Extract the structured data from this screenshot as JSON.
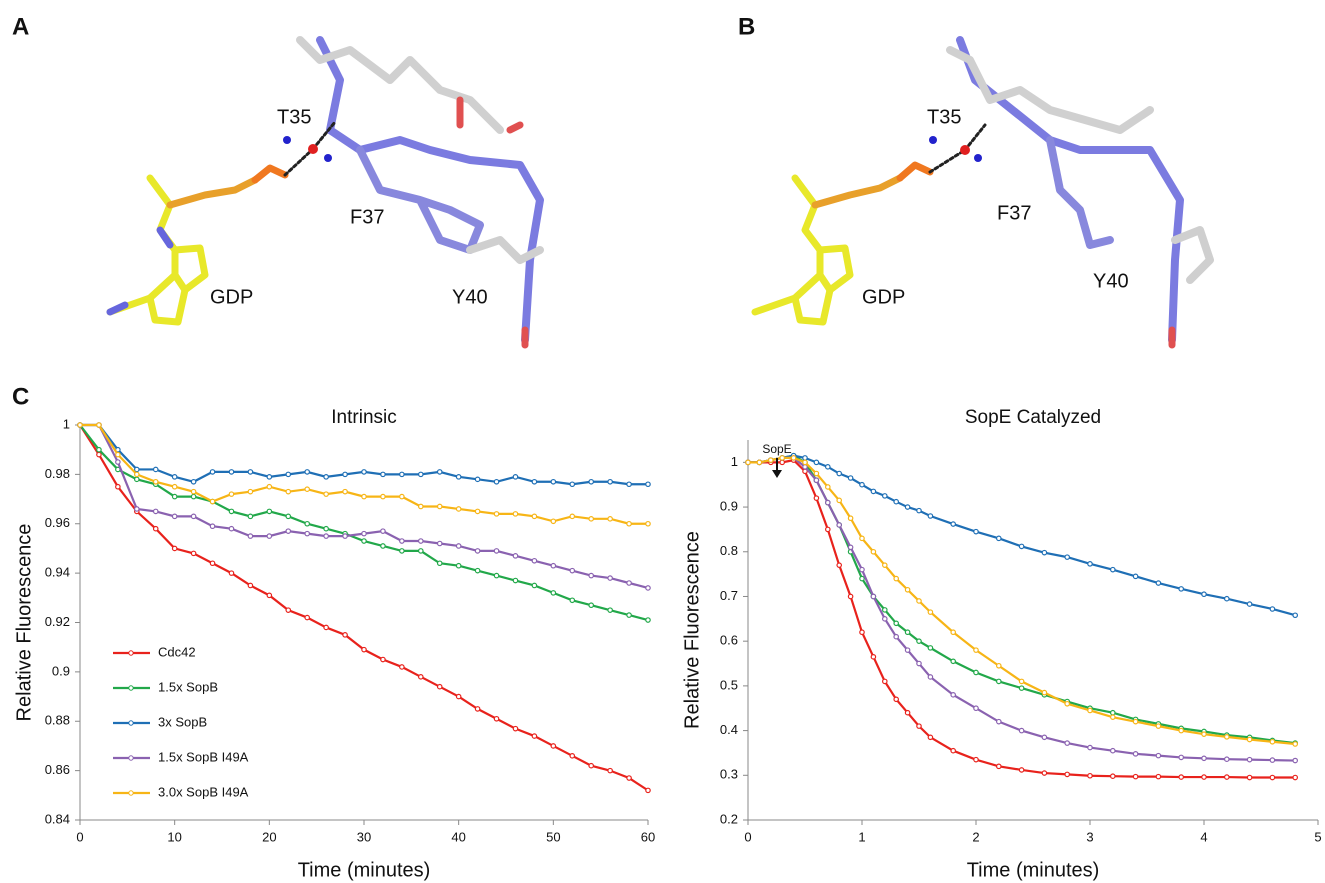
{
  "figure": {
    "panels": [
      "A",
      "B",
      "C"
    ],
    "structure_a": {
      "labels": [
        "T35",
        "F37",
        "Y40",
        "GDP"
      ]
    },
    "structure_b": {
      "labels": [
        "T35",
        "F37",
        "Y40",
        "GDP"
      ]
    }
  },
  "chart_data": [
    {
      "type": "line",
      "title": "Intrinsic",
      "x_label": "Time (minutes)",
      "y_label": "Relative Fluorescence",
      "x": [
        0,
        2,
        4,
        6,
        8,
        10,
        12,
        14,
        16,
        18,
        20,
        22,
        24,
        26,
        28,
        30,
        32,
        34,
        36,
        38,
        40,
        42,
        44,
        46,
        48,
        50,
        52,
        54,
        56,
        58,
        60
      ],
      "xlim": [
        0,
        60
      ],
      "xticks": [
        0,
        10,
        20,
        30,
        40,
        50,
        60
      ],
      "ylim": [
        0.84,
        1
      ],
      "yticks": [
        0.84,
        0.86,
        0.88,
        0.9,
        0.92,
        0.94,
        0.96,
        0.98,
        1
      ],
      "legend": "lower left",
      "series": [
        {
          "name": "Cdc42",
          "color": "#e8221c",
          "values": [
            1,
            0.988,
            0.975,
            0.965,
            0.958,
            0.95,
            0.948,
            0.944,
            0.94,
            0.935,
            0.931,
            0.925,
            0.922,
            0.918,
            0.915,
            0.909,
            0.905,
            0.902,
            0.898,
            0.894,
            0.89,
            0.885,
            0.881,
            0.877,
            0.874,
            0.87,
            0.866,
            0.862,
            0.86,
            0.857,
            0.852
          ]
        },
        {
          "name": "1.5x SopB",
          "color": "#22a84a",
          "values": [
            1,
            0.99,
            0.982,
            0.978,
            0.976,
            0.971,
            0.971,
            0.969,
            0.965,
            0.963,
            0.965,
            0.963,
            0.96,
            0.958,
            0.956,
            0.953,
            0.951,
            0.949,
            0.949,
            0.944,
            0.943,
            0.941,
            0.939,
            0.937,
            0.935,
            0.932,
            0.929,
            0.927,
            0.925,
            0.923,
            0.921
          ]
        },
        {
          "name": "3x SopB",
          "color": "#1f6fb5",
          "values": [
            1,
            1,
            0.99,
            0.982,
            0.982,
            0.979,
            0.977,
            0.981,
            0.981,
            0.981,
            0.979,
            0.98,
            0.981,
            0.979,
            0.98,
            0.981,
            0.98,
            0.98,
            0.98,
            0.981,
            0.979,
            0.978,
            0.977,
            0.979,
            0.977,
            0.977,
            0.976,
            0.977,
            0.977,
            0.976,
            0.976
          ]
        },
        {
          "name": "1.5x SopB I49A",
          "color": "#8a62b0",
          "values": [
            1,
            1,
            0.985,
            0.966,
            0.965,
            0.963,
            0.963,
            0.959,
            0.958,
            0.955,
            0.955,
            0.957,
            0.956,
            0.955,
            0.955,
            0.956,
            0.957,
            0.953,
            0.953,
            0.952,
            0.951,
            0.949,
            0.949,
            0.947,
            0.945,
            0.943,
            0.941,
            0.939,
            0.938,
            0.936,
            0.934
          ]
        },
        {
          "name": "3.0x SopB I49A",
          "color": "#f7b516",
          "values": [
            1,
            1,
            0.988,
            0.98,
            0.977,
            0.975,
            0.973,
            0.969,
            0.972,
            0.973,
            0.975,
            0.973,
            0.974,
            0.972,
            0.973,
            0.971,
            0.971,
            0.971,
            0.967,
            0.967,
            0.966,
            0.965,
            0.964,
            0.964,
            0.963,
            0.961,
            0.963,
            0.962,
            0.962,
            0.96,
            0.96
          ]
        }
      ]
    },
    {
      "type": "line",
      "title": "SopE Catalyzed",
      "x_label": "Time (minutes)",
      "y_label": "Relative Fluorescence",
      "annotation": "SopE",
      "x": [
        0,
        0.1,
        0.2,
        0.3,
        0.4,
        0.5,
        0.6,
        0.7,
        0.8,
        0.9,
        1,
        1.1,
        1.2,
        1.3,
        1.4,
        1.5,
        1.6,
        1.8,
        2,
        2.2,
        2.4,
        2.6,
        2.8,
        3,
        3.2,
        3.4,
        3.6,
        3.8,
        4,
        4.2,
        4.4,
        4.6,
        4.8
      ],
      "xlim": [
        0,
        5
      ],
      "xticks": [
        0,
        1,
        2,
        3,
        4,
        5
      ],
      "ylim": [
        0.2,
        1.05
      ],
      "yticks": [
        0.2,
        0.3,
        0.4,
        0.5,
        0.6,
        0.7,
        0.8,
        0.9,
        1
      ],
      "series": [
        {
          "color": "#e8221c",
          "values": [
            1,
            1,
            1,
            1,
            1.005,
            0.98,
            0.92,
            0.85,
            0.77,
            0.7,
            0.62,
            0.565,
            0.51,
            0.47,
            0.44,
            0.41,
            0.385,
            0.355,
            0.335,
            0.32,
            0.312,
            0.305,
            0.302,
            0.299,
            0.298,
            0.297,
            0.297,
            0.296,
            0.296,
            0.296,
            0.295,
            0.295,
            0.295
          ]
        },
        {
          "color": "#22a84a",
          "values": [
            1,
            1,
            1.005,
            1.01,
            1.015,
            1,
            0.96,
            0.91,
            0.86,
            0.8,
            0.74,
            0.7,
            0.67,
            0.64,
            0.62,
            0.6,
            0.585,
            0.555,
            0.53,
            0.51,
            0.495,
            0.48,
            0.465,
            0.45,
            0.44,
            0.425,
            0.415,
            0.405,
            0.398,
            0.39,
            0.385,
            0.378,
            0.372
          ]
        },
        {
          "color": "#1f6fb5",
          "values": [
            1,
            1,
            1.005,
            1.01,
            1.015,
            1.01,
            1,
            0.99,
            0.975,
            0.965,
            0.95,
            0.935,
            0.925,
            0.912,
            0.9,
            0.892,
            0.88,
            0.862,
            0.845,
            0.83,
            0.812,
            0.798,
            0.788,
            0.773,
            0.76,
            0.745,
            0.73,
            0.717,
            0.705,
            0.695,
            0.683,
            0.672,
            0.658
          ]
        },
        {
          "color": "#8a62b0",
          "values": [
            1,
            1,
            1.005,
            1.01,
            1.01,
            0.99,
            0.96,
            0.91,
            0.86,
            0.81,
            0.76,
            0.7,
            0.65,
            0.61,
            0.58,
            0.55,
            0.52,
            0.48,
            0.45,
            0.42,
            0.4,
            0.385,
            0.372,
            0.362,
            0.355,
            0.348,
            0.344,
            0.34,
            0.338,
            0.336,
            0.335,
            0.334,
            0.333
          ]
        },
        {
          "color": "#f7b516",
          "values": [
            1,
            1,
            1.005,
            1.01,
            1.01,
            1,
            0.975,
            0.945,
            0.915,
            0.875,
            0.83,
            0.8,
            0.77,
            0.74,
            0.715,
            0.69,
            0.665,
            0.62,
            0.58,
            0.545,
            0.51,
            0.485,
            0.46,
            0.445,
            0.43,
            0.42,
            0.41,
            0.4,
            0.392,
            0.386,
            0.38,
            0.375,
            0.37
          ]
        }
      ]
    }
  ]
}
